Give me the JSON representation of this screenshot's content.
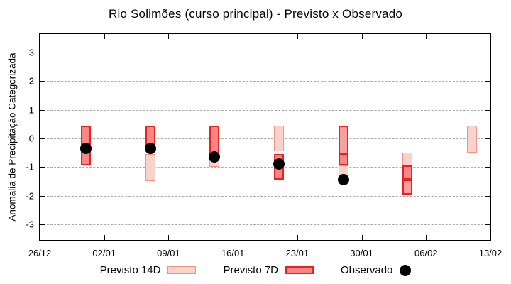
{
  "title": "Rio Solimões (curso principal) - Previsto x Observado",
  "ylabel": "Anomalia de Precipitação Categorizada",
  "legend": {
    "items": [
      {
        "label": "Previsto 14D",
        "type": "14d"
      },
      {
        "label": "Previsto 7D",
        "type": "7d"
      },
      {
        "label": "Observado",
        "type": "dot"
      }
    ]
  },
  "colors": {
    "previsto_14d_fill": "#fad2cc",
    "previsto_14d_border": "#f0958c",
    "previsto_7d_fill": "#f98585",
    "previsto_7d_light_fill": "#fa9e9e",
    "previsto_7d_border": "#e62222",
    "observado": "#000000",
    "grid": "#aaaaaa",
    "axis": "#000000"
  },
  "chart_data": {
    "type": "bar",
    "title": "Rio Solimões (curso principal) - Previsto x Observado",
    "xlabel": "",
    "ylabel": "Anomalia de Precipitação Categorizada",
    "ylim": [
      -3.55,
      3.65
    ],
    "y_ticks": [
      -3,
      -2,
      -1,
      0,
      1,
      2,
      3
    ],
    "grid": "horizontal-dashed",
    "legend_position": "bottom-center",
    "x_day_span": 49,
    "x_ticks": [
      {
        "label": "26/12",
        "day": 0
      },
      {
        "label": "02/01",
        "day": 7
      },
      {
        "label": "09/01",
        "day": 14
      },
      {
        "label": "16/01",
        "day": 21
      },
      {
        "label": "23/01",
        "day": 28
      },
      {
        "label": "30/01",
        "day": 35
      },
      {
        "label": "06/02",
        "day": 42
      },
      {
        "label": "13/02",
        "day": 49
      }
    ],
    "series_names": [
      "Previsto 14D",
      "Previsto 7D",
      "Observado"
    ],
    "bars": [
      {
        "date": "31/12",
        "day": 5,
        "segments": [
          {
            "type": "7d",
            "from": -0.95,
            "to": 0.45
          }
        ],
        "observed": -0.35
      },
      {
        "date": "07/01",
        "day": 12,
        "segments": [
          {
            "type": "7d",
            "from": -0.45,
            "to": 0.45
          },
          {
            "type": "14d",
            "from": -1.5,
            "to": -0.55
          }
        ],
        "observed": -0.35
      },
      {
        "date": "14/01",
        "day": 19,
        "segments": [
          {
            "type": "7d",
            "from": -0.55,
            "to": 0.45
          },
          {
            "type": "14d",
            "from": -1.0,
            "to": -0.55
          }
        ],
        "observed": -0.65
      },
      {
        "date": "21/01",
        "day": 26,
        "segments": [
          {
            "type": "14d",
            "from": -0.45,
            "to": 0.45
          },
          {
            "type": "7d",
            "from": -1.45,
            "to": -0.55
          }
        ],
        "observed": -0.9
      },
      {
        "date": "28/01",
        "day": 33,
        "segments": [
          {
            "type": "7d_light",
            "from": -0.55,
            "to": 0.45
          },
          {
            "type": "7d",
            "from": -0.95,
            "to": -0.55
          },
          {
            "type": "14d",
            "from": -1.45,
            "to": -0.95
          }
        ],
        "observed": -1.45
      },
      {
        "date": "04/02",
        "day": 40,
        "segments": [
          {
            "type": "14d",
            "from": -0.95,
            "to": -0.5
          },
          {
            "type": "7d",
            "from": -1.45,
            "to": -0.95
          },
          {
            "type": "7d_light",
            "from": -1.95,
            "to": -1.45
          }
        ],
        "observed": null
      },
      {
        "date": "11/02",
        "day": 47,
        "segments": [
          {
            "type": "14d",
            "from": -0.5,
            "to": 0.45
          }
        ],
        "observed": null
      }
    ]
  }
}
